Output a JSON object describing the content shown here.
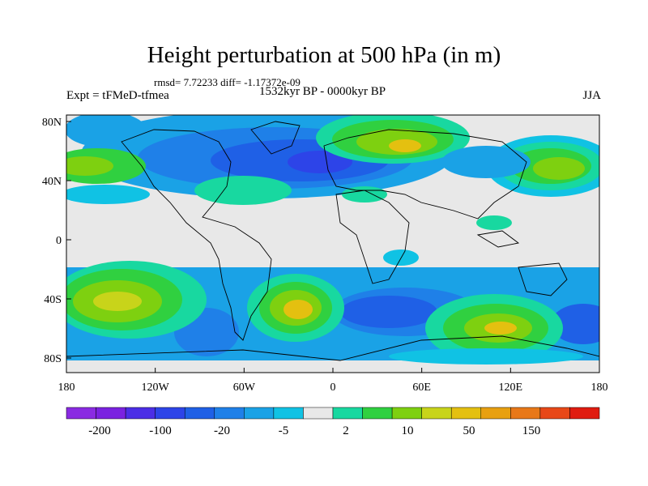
{
  "title": "Height perturbation at 500 hPa (in m)",
  "stats": "rmsd= 7.72233 diff= -1.17372e-09",
  "left_label": "Expt = tFMeD-tfmea",
  "center_label": "1532kyr BP - 0000kyr BP",
  "right_label": "JJA",
  "x_ticks": [
    "180",
    "120W",
    "60W",
    "0",
    "60E",
    "120E",
    "180"
  ],
  "y_ticks": [
    "80N",
    "40N",
    "0",
    "40S",
    "80S"
  ],
  "colorbar": {
    "colors": [
      "#8a2be2",
      "#7a22e0",
      "#4b2ee6",
      "#2d44e8",
      "#1f60e6",
      "#1f80e8",
      "#1aa2e6",
      "#10c2e4",
      "#e8e8e8",
      "#18d8a0",
      "#30d040",
      "#7ed010",
      "#c8d41a",
      "#e4c010",
      "#e8a010",
      "#e87818",
      "#e84818",
      "#e01c10"
    ],
    "labels": [
      "-200",
      "-100",
      "-20",
      "-5",
      "2",
      "10",
      "50",
      "150"
    ]
  }
}
